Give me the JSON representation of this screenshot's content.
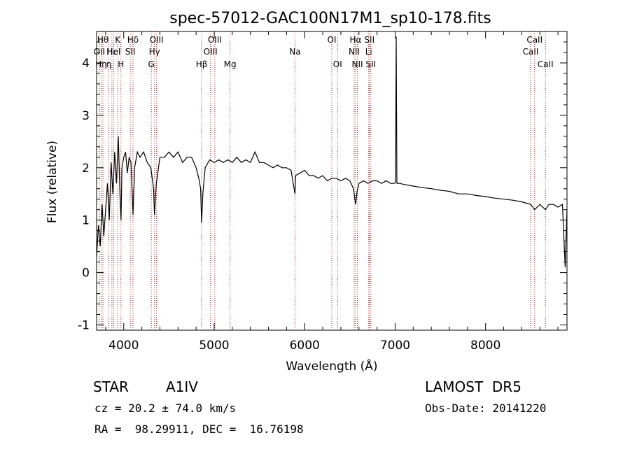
{
  "chart_data": {
    "type": "line",
    "title": "spec-57012-GAC100N17M1_sp10-178.fits",
    "xlabel": "Wavelength (Å)",
    "ylabel": "Flux (relative)",
    "xlim": [
      3700,
      8900
    ],
    "ylim": [
      -1.1,
      4.6
    ],
    "xticks": [
      4000,
      5000,
      6000,
      7000,
      8000
    ],
    "yticks": [
      -1,
      0,
      1,
      2,
      3,
      4
    ],
    "series": [
      {
        "values_x": [
          3700,
          3720,
          3740,
          3760,
          3780,
          3800,
          3820,
          3840,
          3860,
          3880,
          3900,
          3920,
          3940,
          3960,
          3970,
          3980,
          4000,
          4020,
          4040,
          4060,
          4080,
          4102,
          4120,
          4150,
          4180,
          4220,
          4260,
          4300,
          4330,
          4340,
          4360,
          4400,
          4450,
          4500,
          4550,
          4600,
          4650,
          4700,
          4750,
          4800,
          4830,
          4850,
          4861,
          4875,
          4900,
          4950,
          5000,
          5050,
          5100,
          5150,
          5200,
          5250,
          5300,
          5350,
          5400,
          5450,
          5500,
          5550,
          5600,
          5650,
          5700,
          5750,
          5800,
          5850,
          5893,
          5900,
          5950,
          6000,
          6050,
          6100,
          6150,
          6200,
          6250,
          6300,
          6350,
          6400,
          6450,
          6500,
          6540,
          6563,
          6580,
          6600,
          6650,
          6700,
          6750,
          6800,
          6850,
          6900,
          6950,
          6990,
          7005,
          7012,
          7020,
          7050,
          7100,
          7200,
          7300,
          7400,
          7500,
          7600,
          7700,
          7800,
          7900,
          8000,
          8100,
          8200,
          8300,
          8400,
          8500,
          8542,
          8600,
          8662,
          8700,
          8750,
          8800,
          8850,
          8880,
          8900
        ],
        "values_y": [
          0.3,
          0.9,
          0.5,
          1.3,
          0.7,
          1.2,
          1.7,
          1.0,
          2.1,
          1.5,
          2.3,
          1.7,
          2.6,
          1.4,
          1.0,
          2.0,
          2.2,
          2.3,
          1.9,
          2.2,
          2.1,
          1.1,
          2.0,
          2.3,
          2.2,
          2.3,
          2.1,
          2.0,
          1.6,
          1.1,
          1.7,
          2.2,
          2.2,
          2.3,
          2.2,
          2.3,
          2.1,
          2.2,
          2.2,
          2.0,
          1.8,
          1.6,
          0.95,
          1.5,
          2.0,
          2.15,
          2.1,
          2.15,
          2.1,
          2.15,
          2.1,
          2.2,
          2.1,
          2.15,
          2.1,
          2.3,
          2.1,
          2.1,
          2.05,
          2.0,
          2.05,
          2.0,
          2.0,
          1.95,
          1.5,
          1.85,
          1.9,
          1.95,
          1.85,
          1.85,
          1.8,
          1.85,
          1.75,
          1.8,
          1.8,
          1.75,
          1.8,
          1.75,
          1.6,
          1.3,
          1.55,
          1.7,
          1.75,
          1.7,
          1.75,
          1.75,
          1.7,
          1.75,
          1.7,
          1.7,
          1.72,
          4.5,
          1.7,
          1.7,
          1.68,
          1.65,
          1.62,
          1.6,
          1.57,
          1.55,
          1.5,
          1.5,
          1.47,
          1.45,
          1.42,
          1.4,
          1.38,
          1.35,
          1.3,
          1.2,
          1.3,
          1.2,
          1.3,
          1.3,
          1.25,
          1.3,
          0.1,
          1.2
        ]
      }
    ],
    "lines": [
      {
        "x": 3730,
        "label": "OII",
        "row": 1
      },
      {
        "x": 3750,
        "label": "Hη",
        "row": 2
      },
      {
        "x": 3770,
        "label": "Hθ",
        "row": 0
      },
      {
        "x": 3835,
        "label": "η",
        "row": 2
      },
      {
        "x": 3869,
        "label": "Hε",
        "row": 1
      },
      {
        "x": 3889,
        "label": "HeI",
        "row": 1
      },
      {
        "x": 3934,
        "label": "K",
        "row": 0
      },
      {
        "x": 3969,
        "label": "H",
        "row": 2
      },
      {
        "x": 4072,
        "label": "SII",
        "row": 1
      },
      {
        "x": 4102,
        "label": "Hδ",
        "row": 0
      },
      {
        "x": 4305,
        "label": "G",
        "row": 2
      },
      {
        "x": 4340,
        "label": "Hγ",
        "row": 1
      },
      {
        "x": 4363,
        "label": "OIII",
        "row": 0
      },
      {
        "x": 4861,
        "label": "Hβ",
        "row": 2
      },
      {
        "x": 4959,
        "label": "OIII",
        "row": 1
      },
      {
        "x": 5007,
        "label": "OIII",
        "row": 0
      },
      {
        "x": 5175,
        "label": "Mg",
        "row": 2
      },
      {
        "x": 5893,
        "label": "Na",
        "row": 1
      },
      {
        "x": 6300,
        "label": "OI",
        "row": 0
      },
      {
        "x": 6364,
        "label": "OI",
        "row": 2
      },
      {
        "x": 6548,
        "label": "NII",
        "row": 1
      },
      {
        "x": 6563,
        "label": "Hα",
        "row": 0
      },
      {
        "x": 6583,
        "label": "NII",
        "row": 2
      },
      {
        "x": 6708,
        "label": "Li",
        "row": 1
      },
      {
        "x": 6716,
        "label": "SII",
        "row": 0
      },
      {
        "x": 6731,
        "label": "SII",
        "row": 2
      },
      {
        "x": 8498,
        "label": "CaII",
        "row": 1
      },
      {
        "x": 8542,
        "label": "CaII",
        "row": 0
      },
      {
        "x": 8662,
        "label": "CaII",
        "row": 2
      }
    ]
  },
  "info": {
    "object_class": "STAR",
    "subclass": "A1IV",
    "survey": "LAMOST  DR5",
    "redshift": "cz = 20.2 ± 74.0 km/s",
    "obs_date": "Obs-Date: 20141220",
    "coords": "RA =  98.29911, DEC =  16.76198"
  },
  "colors": {
    "spectrum": "#000000",
    "line_markers": "#b22222"
  }
}
